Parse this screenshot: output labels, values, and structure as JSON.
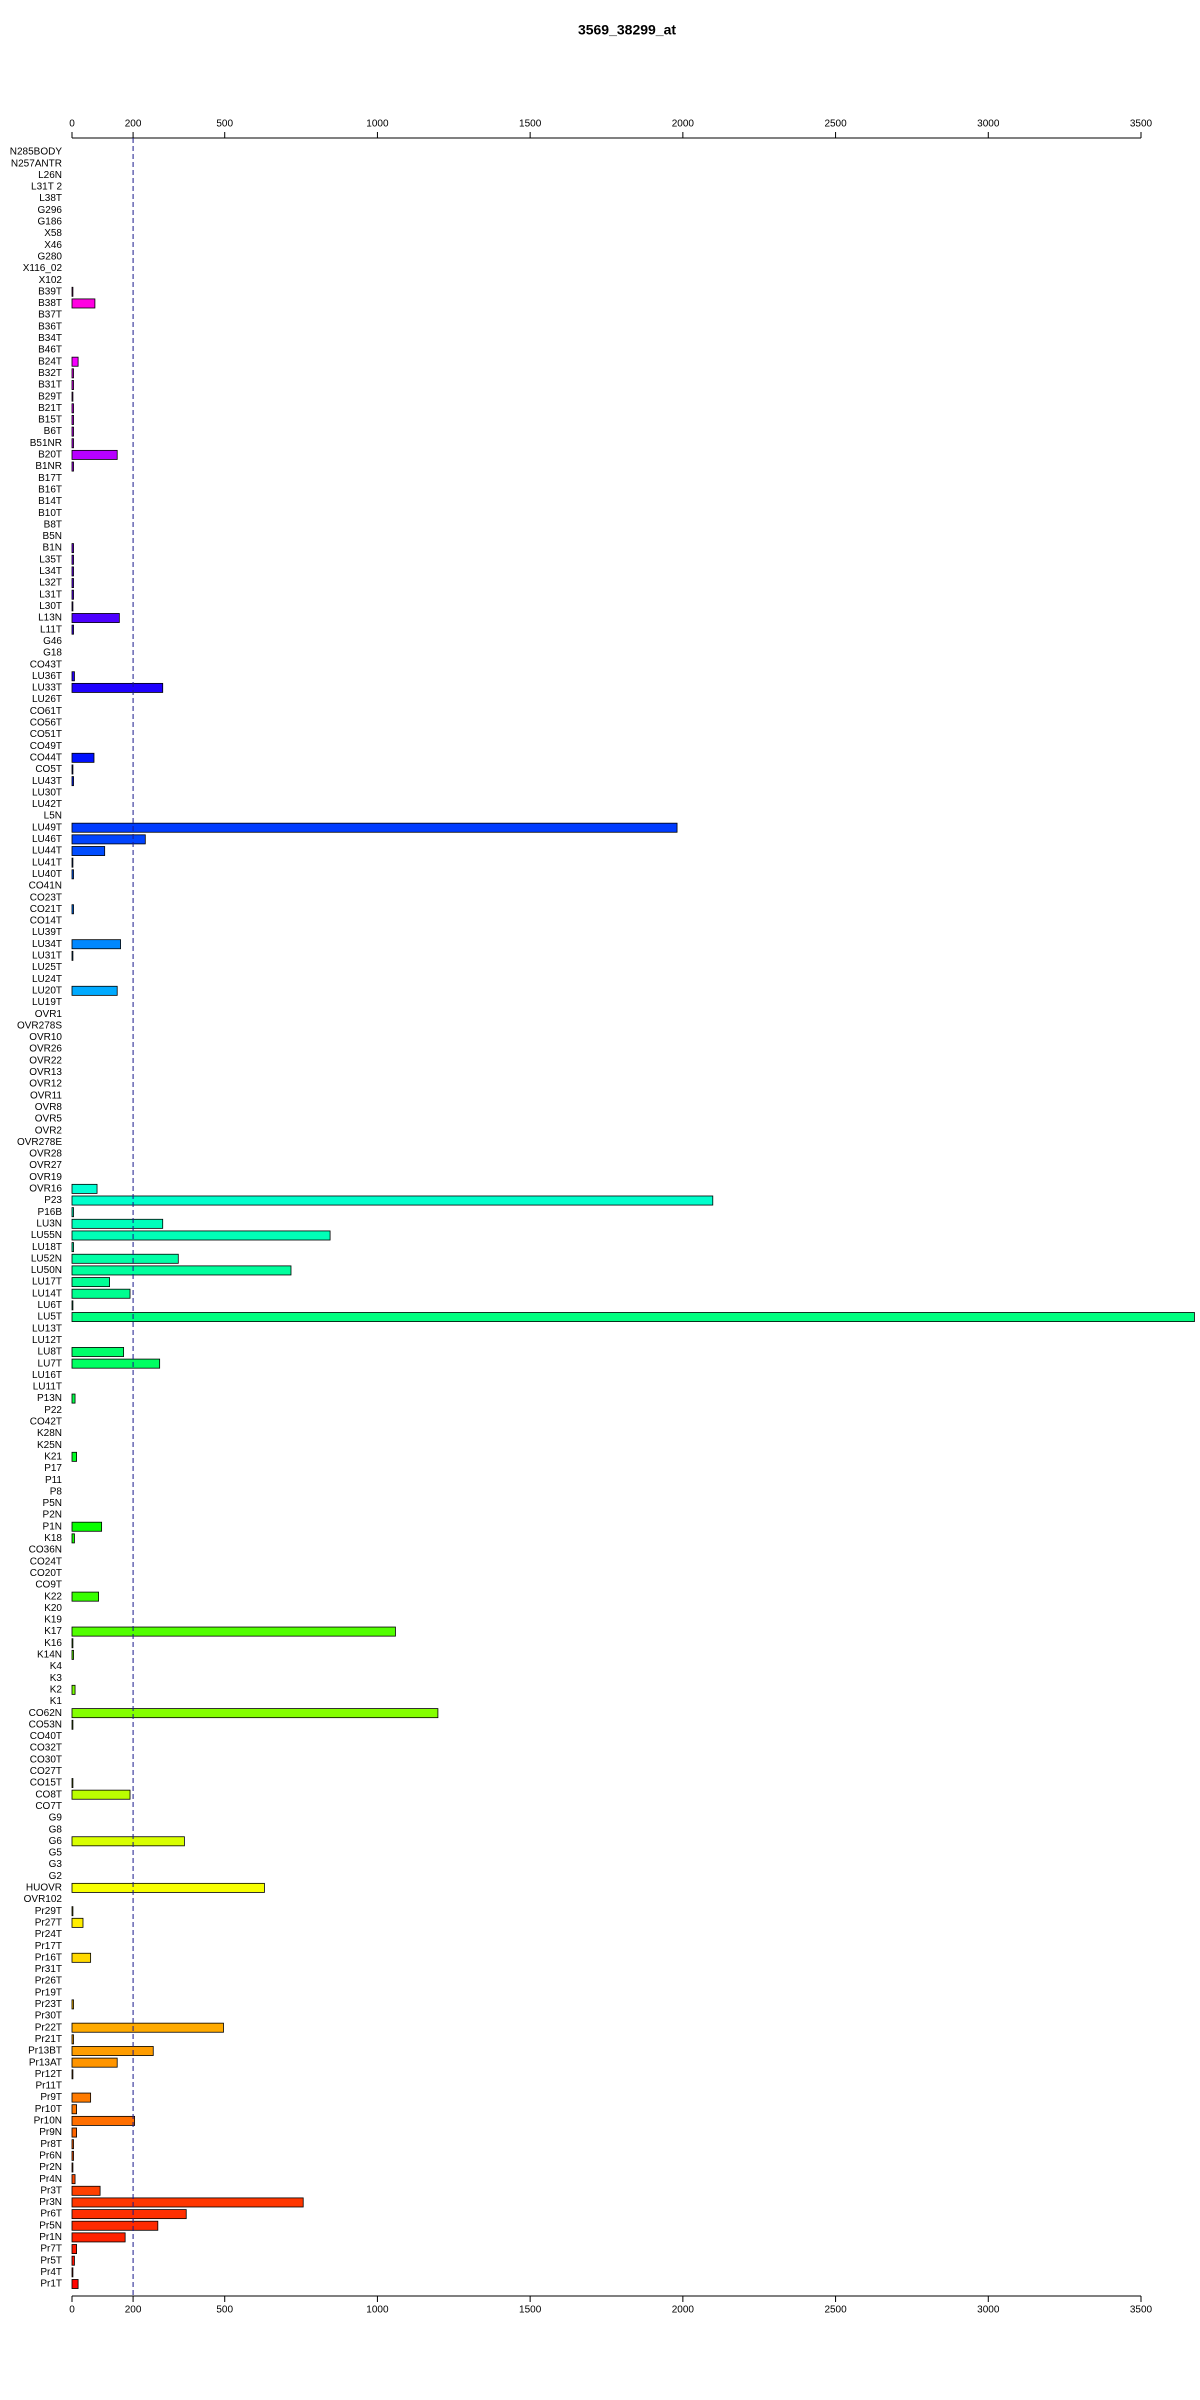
{
  "chart_data": {
    "type": "hbar",
    "title": "3569_38299_at",
    "categories": [
      "N285BODY",
      "N257ANTR",
      "L26N",
      "L31T 2",
      "L38T",
      "G296",
      "G186",
      "X58",
      "X46",
      "G280",
      "X116_02",
      "X102",
      "B39T",
      "B38T",
      "B37T",
      "B36T",
      "B34T",
      "B46T",
      "B24T",
      "B32T",
      "B31T",
      "B29T",
      "B21T",
      "B15T",
      "B6T",
      "B51NR",
      "B20T",
      "B1NR",
      "B17T",
      "B16T",
      "B14T",
      "B10T",
      "B8T",
      "B5N",
      "B1N",
      "L35T",
      "L34T",
      "L32T",
      "L31T",
      "L30T",
      "L13N",
      "L11T",
      "G46",
      "G18",
      "CO43T",
      "LU36T",
      "LU33T",
      "LU26T",
      "CO61T",
      "CO56T",
      "CO51T",
      "CO49T",
      "CO44T",
      "CO5T",
      "LU43T",
      "LU30T",
      "LU42T",
      "L5N",
      "LU49T",
      "LU46T",
      "LU44T",
      "LU41T",
      "LU40T",
      "CO41N",
      "CO23T",
      "CO21T",
      "CO14T",
      "LU39T",
      "LU34T",
      "LU31T",
      "LU25T",
      "LU24T",
      "LU20T",
      "LU19T",
      "OVR1",
      "OVR278S",
      "OVR10",
      "OVR26",
      "OVR22",
      "OVR13",
      "OVR12",
      "OVR11",
      "OVR8",
      "OVR5",
      "OVR2",
      "OVR278E",
      "OVR28",
      "OVR27",
      "OVR19",
      "OVR16",
      "P23",
      "P16B",
      "LU3N",
      "LU55N",
      "LU18T",
      "LU52N",
      "LU50N",
      "LU17T",
      "LU14T",
      "LU6T",
      "LU5T",
      "LU13T",
      "LU12T",
      "LU8T",
      "LU7T",
      "LU16T",
      "LU11T",
      "P13N",
      "P22",
      "CO42T",
      "K28N",
      "K25N",
      "K21",
      "P17",
      "P11",
      "P8",
      "P5N",
      "P2N",
      "P1N",
      "K18",
      "CO36N",
      "CO24T",
      "CO20T",
      "CO9T",
      "K22",
      "K20",
      "K19",
      "K17",
      "K16",
      "K14N",
      "K4",
      "K3",
      "K2",
      "K1",
      "CO62N",
      "CO53N",
      "CO40T",
      "CO32T",
      "CO30T",
      "CO27T",
      "CO15T",
      "CO8T",
      "CO7T",
      "G9",
      "G8",
      "G6",
      "G5",
      "G3",
      "G2",
      "HUOVR",
      "OVR102",
      "Pr29T",
      "Pr27T",
      "Pr24T",
      "Pr17T",
      "Pr16T",
      "Pr31T",
      "Pr26T",
      "Pr19T",
      "Pr23T",
      "Pr30T",
      "Pr22T",
      "Pr21T",
      "Pr13BT",
      "Pr13AT",
      "Pr12T",
      "Pr11T",
      "Pr9T",
      "Pr10T",
      "Pr10N",
      "Pr9N",
      "Pr8T",
      "Pr6N",
      "Pr2N",
      "Pr4N",
      "Pr3T",
      "Pr3N",
      "Pr6T",
      "Pr5N",
      "Pr1N",
      "Pr7T",
      "Pr5T",
      "Pr4T",
      "Pr1T"
    ],
    "values": [
      0,
      0,
      0,
      0,
      0,
      0,
      0,
      0,
      0,
      0,
      0,
      0,
      3,
      75,
      0,
      0,
      0,
      0,
      20,
      5,
      5,
      3,
      5,
      5,
      5,
      5,
      148,
      5,
      0,
      0,
      0,
      0,
      0,
      0,
      5,
      5,
      5,
      5,
      5,
      3,
      155,
      5,
      0,
      0,
      0,
      8,
      297,
      0,
      0,
      0,
      0,
      0,
      72,
      3,
      5,
      0,
      0,
      0,
      1981,
      240,
      107,
      3,
      5,
      0,
      0,
      5,
      0,
      0,
      159,
      3,
      0,
      0,
      148,
      0,
      0,
      0,
      0,
      0,
      0,
      0,
      0,
      0,
      0,
      0,
      0,
      0,
      0,
      0,
      0,
      82,
      2098,
      5,
      297,
      845,
      5,
      348,
      717,
      123,
      190,
      3,
      3675,
      0,
      0,
      169,
      287,
      0,
      0,
      10,
      0,
      0,
      0,
      0,
      15,
      0,
      0,
      0,
      0,
      0,
      97,
      8,
      0,
      0,
      0,
      0,
      87,
      0,
      0,
      1059,
      3,
      5,
      0,
      0,
      10,
      0,
      1198,
      3,
      0,
      0,
      0,
      0,
      3,
      190,
      0,
      0,
      0,
      368,
      0,
      0,
      0,
      630,
      0,
      3,
      36,
      0,
      0,
      61,
      0,
      0,
      0,
      5,
      0,
      496,
      5,
      266,
      148,
      3,
      0,
      61,
      15,
      205,
      15,
      5,
      5,
      3,
      10,
      92,
      757,
      374,
      281,
      174,
      15,
      8,
      3,
      20
    ],
    "colors": [
      "hsl(330,100%,50%)",
      "hsl(328,100%,50%)",
      "hsl(326,100%,50%)",
      "hsl(325,100%,50%)",
      "hsl(323,100%,50%)",
      "hsl(321,100%,50%)",
      "hsl(319,100%,50%)",
      "hsl(317,100%,50%)",
      "hsl(316,100%,50%)",
      "hsl(314,100%,50%)",
      "hsl(312,100%,50%)",
      "hsl(310,100%,50%)",
      "hsl(308,100%,50%)",
      "hsl(307,100%,50%)",
      "hsl(305,100%,50%)",
      "hsl(303,100%,50%)",
      "hsl(301,100%,50%)",
      "hsl(299,100%,50%)",
      "hsl(298,100%,50%)",
      "hsl(296,100%,50%)",
      "hsl(294,100%,50%)",
      "hsl(292,100%,50%)",
      "hsl(290,100%,50%)",
      "hsl(289,100%,50%)",
      "hsl(287,100%,50%)",
      "hsl(285,100%,50%)",
      "hsl(283,100%,50%)",
      "hsl(281,100%,50%)",
      "hsl(280,100%,50%)",
      "hsl(278,100%,50%)",
      "hsl(276,100%,50%)",
      "hsl(274,100%,50%)",
      "hsl(272,100%,50%)",
      "hsl(271,100%,50%)",
      "hsl(269,100%,50%)",
      "hsl(267,100%,50%)",
      "hsl(265,100%,50%)",
      "hsl(263,100%,50%)",
      "hsl(262,100%,50%)",
      "hsl(260,100%,50%)",
      "hsl(258,100%,50%)",
      "hsl(256,100%,50%)",
      "hsl(254,100%,50%)",
      "hsl(253,100%,50%)",
      "hsl(251,100%,50%)",
      "hsl(249,100%,50%)",
      "hsl(247,100%,50%)",
      "hsl(245,100%,50%)",
      "hsl(244,100%,50%)",
      "hsl(242,100%,50%)",
      "hsl(240,100%,50%)",
      "hsl(238,100%,50%)",
      "hsl(236,100%,50%)",
      "hsl(235,100%,50%)",
      "hsl(233,100%,50%)",
      "hsl(231,100%,50%)",
      "hsl(229,100%,50%)",
      "hsl(227,100%,50%)",
      "hsl(226,100%,50%)",
      "hsl(224,100%,50%)",
      "hsl(222,100%,50%)",
      "hsl(220,100%,50%)",
      "hsl(218,100%,50%)",
      "hsl(217,100%,50%)",
      "hsl(215,100%,50%)",
      "hsl(213,100%,50%)",
      "hsl(211,100%,50%)",
      "hsl(209,100%,50%)",
      "hsl(208,100%,50%)",
      "hsl(206,100%,50%)",
      "hsl(204,100%,50%)",
      "hsl(202,100%,50%)",
      "hsl(200,100%,50%)",
      "hsl(199,100%,50%)",
      "hsl(197,100%,50%)",
      "hsl(195,100%,50%)",
      "hsl(193,100%,50%)",
      "hsl(191,100%,50%)",
      "hsl(190,100%,50%)",
      "hsl(188,100%,50%)",
      "hsl(186,100%,50%)",
      "hsl(184,100%,50%)",
      "hsl(182,100%,50%)",
      "hsl(181,100%,50%)",
      "hsl(179,100%,50%)",
      "hsl(177,100%,50%)",
      "hsl(175,100%,50%)",
      "hsl(173,100%,50%)",
      "hsl(172,100%,50%)",
      "hsl(170,100%,50%)",
      "hsl(168,100%,50%)",
      "hsl(166,100%,50%)",
      "hsl(164,100%,50%)",
      "hsl(163,100%,50%)",
      "hsl(161,100%,50%)",
      "hsl(159,100%,50%)",
      "hsl(157,100%,50%)",
      "hsl(155,100%,50%)",
      "hsl(154,100%,50%)",
      "hsl(152,100%,50%)",
      "hsl(150,100%,50%)",
      "hsl(148,100%,50%)",
      "hsl(146,100%,50%)",
      "hsl(145,100%,50%)",
      "hsl(143,100%,50%)",
      "hsl(141,100%,50%)",
      "hsl(139,100%,50%)",
      "hsl(137,100%,50%)",
      "hsl(136,100%,50%)",
      "hsl(134,100%,50%)",
      "hsl(132,100%,50%)",
      "hsl(130,100%,50%)",
      "hsl(128,100%,50%)",
      "hsl(127,100%,50%)",
      "hsl(125,100%,50%)",
      "hsl(123,100%,50%)",
      "hsl(121,100%,50%)",
      "hsl(119,100%,50%)",
      "hsl(118,100%,50%)",
      "hsl(116,100%,50%)",
      "hsl(114,100%,50%)",
      "hsl(112,100%,50%)",
      "hsl(110,100%,50%)",
      "hsl(109,100%,50%)",
      "hsl(107,100%,50%)",
      "hsl(105,100%,50%)",
      "hsl(103,100%,50%)",
      "hsl(101,100%,50%)",
      "hsl(100,100%,50%)",
      "hsl(98,100%,50%)",
      "hsl(96,100%,50%)",
      "hsl(94,100%,50%)",
      "hsl(92,100%,50%)",
      "hsl(91,100%,50%)",
      "hsl(89,100%,50%)",
      "hsl(87,100%,50%)",
      "hsl(85,100%,50%)",
      "hsl(83,100%,50%)",
      "hsl(82,100%,50%)",
      "hsl(80,100%,50%)",
      "hsl(78,100%,50%)",
      "hsl(76,100%,50%)",
      "hsl(74,100%,50%)",
      "hsl(73,100%,50%)",
      "hsl(71,100%,50%)",
      "hsl(69,100%,50%)",
      "hsl(67,100%,50%)",
      "hsl(65,100%,50%)",
      "hsl(64,100%,50%)",
      "hsl(62,100%,50%)",
      "hsl(60,100%,50%)",
      "hsl(58,100%,50%)",
      "hsl(56,100%,50%)",
      "hsl(55,100%,50%)",
      "hsl(53,100%,50%)",
      "hsl(51,100%,50%)",
      "hsl(49,100%,50%)",
      "hsl(47,100%,50%)",
      "hsl(46,100%,50%)",
      "hsl(44,100%,50%)",
      "hsl(42,100%,50%)",
      "hsl(40,100%,50%)",
      "hsl(38,100%,50%)",
      "hsl(37,100%,50%)",
      "hsl(35,100%,50%)",
      "hsl(33,100%,50%)",
      "hsl(31,100%,50%)",
      "hsl(29,100%,50%)",
      "hsl(28,100%,50%)",
      "hsl(26,100%,50%)",
      "hsl(24,100%,50%)",
      "hsl(22,100%,50%)",
      "hsl(20,100%,50%)",
      "hsl(19,100%,50%)",
      "hsl(17,100%,50%)",
      "hsl(15,100%,50%)",
      "hsl(13,100%,50%)",
      "hsl(11,100%,50%)",
      "hsl(10,100%,50%)",
      "hsl(8,100%,50%)",
      "hsl(6,100%,50%)",
      "hsl(4,100%,50%)",
      "hsl(2,100%,50%)",
      "hsl(1,100%,50%)"
    ],
    "xlim": [
      0,
      3500
    ],
    "xticks": [
      0,
      200,
      500,
      1000,
      1500,
      2000,
      2500,
      3000,
      3500
    ],
    "reference_line": 200
  }
}
